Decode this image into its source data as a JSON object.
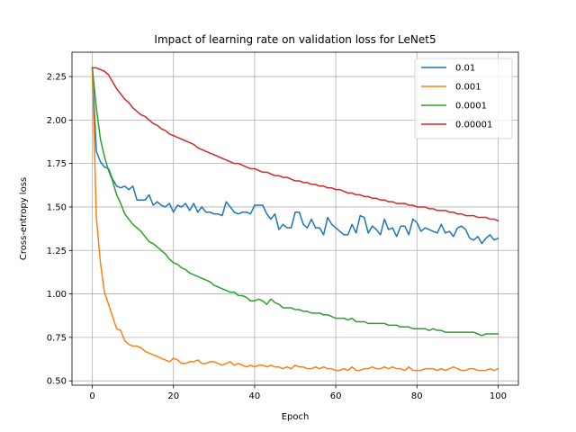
{
  "chart_data": {
    "type": "line",
    "title": "Impact of learning rate on validation loss for LeNet5",
    "xlabel": "Epoch",
    "ylabel": "Cross-entropy loss",
    "xlim": [
      -5,
      105
    ],
    "ylim": [
      0.475,
      2.39
    ],
    "xticks": [
      0,
      20,
      40,
      60,
      80,
      100
    ],
    "xtick_labels": [
      "0",
      "20",
      "40",
      "60",
      "80",
      "100"
    ],
    "yticks": [
      0.5,
      0.75,
      1.0,
      1.25,
      1.5,
      1.75,
      2.0,
      2.25
    ],
    "ytick_labels": [
      "0.50",
      "0.75",
      "1.00",
      "1.25",
      "1.50",
      "1.75",
      "2.00",
      "2.25"
    ],
    "grid": true,
    "legend_position": "top-right",
    "x": [
      0,
      1,
      2,
      3,
      4,
      5,
      6,
      7,
      8,
      9,
      10,
      11,
      12,
      13,
      14,
      15,
      16,
      17,
      18,
      19,
      20,
      21,
      22,
      23,
      24,
      25,
      26,
      27,
      28,
      29,
      30,
      31,
      32,
      33,
      34,
      35,
      36,
      37,
      38,
      39,
      40,
      41,
      42,
      43,
      44,
      45,
      46,
      47,
      48,
      49,
      50,
      51,
      52,
      53,
      54,
      55,
      56,
      57,
      58,
      59,
      60,
      61,
      62,
      63,
      64,
      65,
      66,
      67,
      68,
      69,
      70,
      71,
      72,
      73,
      74,
      75,
      76,
      77,
      78,
      79,
      80,
      81,
      82,
      83,
      84,
      85,
      86,
      87,
      88,
      89,
      90,
      91,
      92,
      93,
      94,
      95,
      96,
      97,
      98,
      99,
      100
    ],
    "series": [
      {
        "name": "0.01",
        "color": "#1f77b4",
        "values": [
          2.3,
          1.82,
          1.76,
          1.73,
          1.72,
          1.66,
          1.62,
          1.61,
          1.62,
          1.6,
          1.62,
          1.54,
          1.54,
          1.54,
          1.57,
          1.51,
          1.53,
          1.51,
          1.5,
          1.52,
          1.47,
          1.51,
          1.5,
          1.52,
          1.48,
          1.52,
          1.47,
          1.5,
          1.47,
          1.47,
          1.46,
          1.46,
          1.45,
          1.53,
          1.5,
          1.47,
          1.46,
          1.47,
          1.47,
          1.46,
          1.51,
          1.51,
          1.51,
          1.46,
          1.43,
          1.46,
          1.37,
          1.4,
          1.38,
          1.38,
          1.47,
          1.47,
          1.4,
          1.38,
          1.43,
          1.38,
          1.38,
          1.34,
          1.44,
          1.4,
          1.38,
          1.36,
          1.34,
          1.34,
          1.4,
          1.35,
          1.45,
          1.44,
          1.35,
          1.39,
          1.37,
          1.34,
          1.43,
          1.37,
          1.38,
          1.33,
          1.39,
          1.39,
          1.34,
          1.43,
          1.41,
          1.36,
          1.38,
          1.37,
          1.36,
          1.35,
          1.4,
          1.35,
          1.36,
          1.33,
          1.38,
          1.39,
          1.37,
          1.32,
          1.31,
          1.33,
          1.29,
          1.32,
          1.34,
          1.31,
          1.32
        ]
      },
      {
        "name": "0.001",
        "color": "#ff7f0e",
        "values": [
          2.3,
          1.44,
          1.18,
          1.01,
          0.94,
          0.87,
          0.8,
          0.79,
          0.73,
          0.71,
          0.7,
          0.7,
          0.69,
          0.67,
          0.66,
          0.65,
          0.64,
          0.63,
          0.62,
          0.61,
          0.63,
          0.62,
          0.6,
          0.6,
          0.61,
          0.61,
          0.62,
          0.6,
          0.6,
          0.61,
          0.61,
          0.6,
          0.59,
          0.6,
          0.61,
          0.59,
          0.6,
          0.59,
          0.58,
          0.59,
          0.58,
          0.59,
          0.59,
          0.58,
          0.59,
          0.58,
          0.58,
          0.57,
          0.58,
          0.57,
          0.59,
          0.58,
          0.58,
          0.57,
          0.57,
          0.58,
          0.57,
          0.58,
          0.57,
          0.57,
          0.56,
          0.56,
          0.57,
          0.56,
          0.58,
          0.56,
          0.56,
          0.57,
          0.57,
          0.58,
          0.57,
          0.57,
          0.58,
          0.57,
          0.58,
          0.57,
          0.57,
          0.56,
          0.58,
          0.56,
          0.56,
          0.56,
          0.57,
          0.57,
          0.57,
          0.56,
          0.57,
          0.56,
          0.57,
          0.58,
          0.57,
          0.56,
          0.56,
          0.57,
          0.57,
          0.56,
          0.56,
          0.56,
          0.57,
          0.56,
          0.57
        ]
      },
      {
        "name": "0.0001",
        "color": "#2ca02c",
        "values": [
          2.3,
          2.07,
          1.89,
          1.79,
          1.71,
          1.65,
          1.57,
          1.52,
          1.46,
          1.43,
          1.4,
          1.38,
          1.36,
          1.33,
          1.3,
          1.29,
          1.27,
          1.25,
          1.23,
          1.2,
          1.18,
          1.17,
          1.15,
          1.14,
          1.12,
          1.11,
          1.1,
          1.09,
          1.08,
          1.07,
          1.05,
          1.04,
          1.03,
          1.02,
          1.01,
          1.01,
          0.99,
          0.99,
          0.98,
          0.96,
          0.96,
          0.97,
          0.96,
          0.94,
          0.97,
          0.95,
          0.94,
          0.92,
          0.92,
          0.92,
          0.91,
          0.91,
          0.9,
          0.9,
          0.89,
          0.89,
          0.89,
          0.88,
          0.88,
          0.87,
          0.86,
          0.86,
          0.86,
          0.85,
          0.86,
          0.84,
          0.84,
          0.84,
          0.83,
          0.83,
          0.83,
          0.83,
          0.83,
          0.82,
          0.82,
          0.82,
          0.81,
          0.81,
          0.81,
          0.8,
          0.8,
          0.8,
          0.8,
          0.79,
          0.8,
          0.79,
          0.79,
          0.78,
          0.78,
          0.78,
          0.78,
          0.78,
          0.78,
          0.78,
          0.78,
          0.77,
          0.76,
          0.77,
          0.77,
          0.77,
          0.77
        ]
      },
      {
        "name": "0.00001",
        "color": "#d62728",
        "values": [
          2.3,
          2.3,
          2.29,
          2.28,
          2.26,
          2.22,
          2.18,
          2.15,
          2.12,
          2.1,
          2.07,
          2.05,
          2.03,
          2.02,
          2.0,
          1.98,
          1.97,
          1.95,
          1.94,
          1.92,
          1.91,
          1.9,
          1.89,
          1.88,
          1.87,
          1.86,
          1.84,
          1.83,
          1.82,
          1.81,
          1.8,
          1.79,
          1.78,
          1.77,
          1.76,
          1.75,
          1.75,
          1.74,
          1.73,
          1.72,
          1.72,
          1.71,
          1.7,
          1.7,
          1.69,
          1.68,
          1.68,
          1.67,
          1.67,
          1.66,
          1.65,
          1.65,
          1.64,
          1.64,
          1.63,
          1.63,
          1.62,
          1.62,
          1.61,
          1.61,
          1.6,
          1.6,
          1.59,
          1.58,
          1.58,
          1.57,
          1.57,
          1.56,
          1.56,
          1.55,
          1.55,
          1.54,
          1.54,
          1.53,
          1.53,
          1.52,
          1.52,
          1.52,
          1.51,
          1.51,
          1.5,
          1.5,
          1.5,
          1.49,
          1.49,
          1.48,
          1.48,
          1.48,
          1.47,
          1.47,
          1.46,
          1.46,
          1.45,
          1.45,
          1.45,
          1.44,
          1.44,
          1.44,
          1.43,
          1.43,
          1.42
        ]
      }
    ]
  }
}
